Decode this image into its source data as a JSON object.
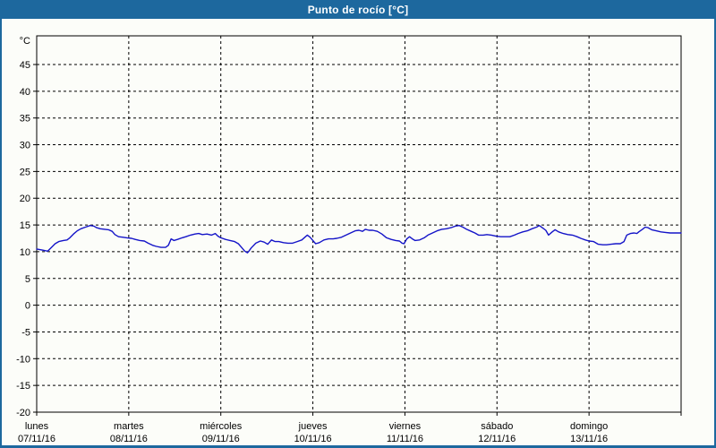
{
  "window": {
    "title": "Punto de rocío [°C]"
  },
  "colors": {
    "titlebar": "#1d689e",
    "frame": "#1d689e",
    "background": "#fcfdf9",
    "plot_background": "#fcfdf9",
    "grid": "#000000",
    "axis_text": "#000000",
    "line": "#1414c8",
    "title_text": "#ffffff"
  },
  "chart_data": {
    "type": "line",
    "title": "Punto de rocío [°C]",
    "ylabel": "°C",
    "xlabel": "",
    "ylim": [
      -20,
      50
    ],
    "ytick_step": 5,
    "yticks": [
      45,
      40,
      35,
      30,
      25,
      20,
      15,
      10,
      5,
      0,
      -5,
      -10,
      -15,
      -20
    ],
    "grid": "dashed",
    "legend_position": "none",
    "x_categories": [
      {
        "name": "lunes",
        "date": "07/11/16"
      },
      {
        "name": "martes",
        "date": "08/11/16"
      },
      {
        "name": "miércoles",
        "date": "09/11/16"
      },
      {
        "name": "jueves",
        "date": "10/11/16"
      },
      {
        "name": "viernes",
        "date": "11/11/16"
      },
      {
        "name": "sábado",
        "date": "12/11/16"
      },
      {
        "name": "domingo",
        "date": "13/11/16"
      }
    ],
    "x_range_days": [
      0,
      7
    ],
    "series": [
      {
        "name": "Punto de rocío",
        "unit": "°C",
        "color": "#1414c8",
        "points": [
          [
            0.0,
            10.5
          ],
          [
            0.06,
            10.3
          ],
          [
            0.12,
            10.1
          ],
          [
            0.16,
            10.8
          ],
          [
            0.2,
            11.5
          ],
          [
            0.24,
            11.9
          ],
          [
            0.29,
            12.1
          ],
          [
            0.33,
            12.2
          ],
          [
            0.36,
            12.6
          ],
          [
            0.4,
            13.3
          ],
          [
            0.44,
            13.9
          ],
          [
            0.48,
            14.3
          ],
          [
            0.53,
            14.6
          ],
          [
            0.58,
            14.9
          ],
          [
            0.62,
            14.8
          ],
          [
            0.65,
            14.5
          ],
          [
            0.69,
            14.3
          ],
          [
            0.74,
            14.2
          ],
          [
            0.78,
            14.1
          ],
          [
            0.82,
            13.8
          ],
          [
            0.85,
            13.2
          ],
          [
            0.89,
            12.8
          ],
          [
            0.94,
            12.7
          ],
          [
            0.98,
            12.6
          ],
          [
            1.03,
            12.5
          ],
          [
            1.07,
            12.3
          ],
          [
            1.12,
            12.1
          ],
          [
            1.17,
            12.0
          ],
          [
            1.21,
            11.6
          ],
          [
            1.26,
            11.2
          ],
          [
            1.3,
            11.0
          ],
          [
            1.35,
            10.8
          ],
          [
            1.4,
            10.8
          ],
          [
            1.43,
            11.2
          ],
          [
            1.46,
            12.4
          ],
          [
            1.49,
            12.1
          ],
          [
            1.53,
            12.3
          ],
          [
            1.58,
            12.6
          ],
          [
            1.62,
            12.8
          ],
          [
            1.67,
            13.1
          ],
          [
            1.72,
            13.3
          ],
          [
            1.76,
            13.4
          ],
          [
            1.8,
            13.2
          ],
          [
            1.85,
            13.3
          ],
          [
            1.9,
            13.1
          ],
          [
            1.94,
            13.4
          ],
          [
            1.97,
            12.9
          ],
          [
            2.0,
            12.6
          ],
          [
            2.05,
            12.3
          ],
          [
            2.1,
            12.1
          ],
          [
            2.15,
            11.9
          ],
          [
            2.19,
            11.5
          ],
          [
            2.23,
            10.7
          ],
          [
            2.26,
            10.1
          ],
          [
            2.29,
            9.8
          ],
          [
            2.3,
            10.0
          ],
          [
            2.33,
            10.7
          ],
          [
            2.38,
            11.6
          ],
          [
            2.43,
            12.0
          ],
          [
            2.47,
            11.8
          ],
          [
            2.51,
            11.4
          ],
          [
            2.55,
            12.2
          ],
          [
            2.59,
            11.9
          ],
          [
            2.63,
            11.9
          ],
          [
            2.68,
            11.7
          ],
          [
            2.73,
            11.6
          ],
          [
            2.78,
            11.6
          ],
          [
            2.83,
            11.9
          ],
          [
            2.88,
            12.2
          ],
          [
            2.92,
            12.8
          ],
          [
            2.94,
            13.1
          ],
          [
            2.97,
            12.7
          ],
          [
            3.0,
            12.1
          ],
          [
            3.03,
            11.5
          ],
          [
            3.07,
            11.7
          ],
          [
            3.12,
            12.2
          ],
          [
            3.17,
            12.4
          ],
          [
            3.22,
            12.4
          ],
          [
            3.26,
            12.5
          ],
          [
            3.31,
            12.7
          ],
          [
            3.36,
            13.1
          ],
          [
            3.41,
            13.5
          ],
          [
            3.46,
            13.9
          ],
          [
            3.5,
            14.0
          ],
          [
            3.54,
            13.8
          ],
          [
            3.57,
            14.2
          ],
          [
            3.61,
            14.0
          ],
          [
            3.65,
            14.0
          ],
          [
            3.7,
            13.8
          ],
          [
            3.75,
            13.3
          ],
          [
            3.8,
            12.6
          ],
          [
            3.85,
            12.3
          ],
          [
            3.9,
            12.1
          ],
          [
            3.94,
            12.0
          ],
          [
            3.97,
            11.6
          ],
          [
            3.99,
            11.5
          ],
          [
            4.02,
            12.4
          ],
          [
            4.05,
            12.8
          ],
          [
            4.08,
            12.4
          ],
          [
            4.11,
            12.1
          ],
          [
            4.16,
            12.2
          ],
          [
            4.21,
            12.6
          ],
          [
            4.25,
            13.1
          ],
          [
            4.3,
            13.5
          ],
          [
            4.35,
            13.9
          ],
          [
            4.4,
            14.2
          ],
          [
            4.45,
            14.3
          ],
          [
            4.5,
            14.5
          ],
          [
            4.55,
            14.8
          ],
          [
            4.59,
            14.9
          ],
          [
            4.63,
            14.6
          ],
          [
            4.67,
            14.2
          ],
          [
            4.72,
            13.8
          ],
          [
            4.76,
            13.5
          ],
          [
            4.8,
            13.1
          ],
          [
            4.85,
            13.1
          ],
          [
            4.89,
            13.2
          ],
          [
            4.94,
            13.1
          ],
          [
            4.99,
            12.9
          ],
          [
            5.04,
            12.8
          ],
          [
            5.09,
            12.8
          ],
          [
            5.14,
            12.8
          ],
          [
            5.19,
            13.1
          ],
          [
            5.23,
            13.4
          ],
          [
            5.28,
            13.7
          ],
          [
            5.33,
            13.9
          ],
          [
            5.38,
            14.3
          ],
          [
            5.43,
            14.6
          ],
          [
            5.46,
            14.9
          ],
          [
            5.5,
            14.4
          ],
          [
            5.53,
            14.0
          ],
          [
            5.56,
            13.1
          ],
          [
            5.6,
            13.7
          ],
          [
            5.63,
            14.1
          ],
          [
            5.67,
            13.7
          ],
          [
            5.72,
            13.4
          ],
          [
            5.77,
            13.2
          ],
          [
            5.82,
            13.1
          ],
          [
            5.87,
            12.8
          ],
          [
            5.91,
            12.5
          ],
          [
            5.96,
            12.2
          ],
          [
            6.0,
            12.0
          ],
          [
            6.05,
            11.9
          ],
          [
            6.1,
            11.4
          ],
          [
            6.15,
            11.3
          ],
          [
            6.19,
            11.3
          ],
          [
            6.24,
            11.4
          ],
          [
            6.29,
            11.5
          ],
          [
            6.34,
            11.5
          ],
          [
            6.38,
            11.9
          ],
          [
            6.41,
            13.1
          ],
          [
            6.45,
            13.4
          ],
          [
            6.49,
            13.5
          ],
          [
            6.52,
            13.4
          ],
          [
            6.54,
            13.7
          ],
          [
            6.58,
            14.2
          ],
          [
            6.61,
            14.6
          ],
          [
            6.64,
            14.5
          ],
          [
            6.68,
            14.1
          ],
          [
            6.73,
            13.9
          ],
          [
            6.78,
            13.7
          ],
          [
            6.83,
            13.6
          ],
          [
            6.88,
            13.5
          ],
          [
            6.93,
            13.5
          ],
          [
            7.0,
            13.5
          ]
        ]
      }
    ]
  }
}
